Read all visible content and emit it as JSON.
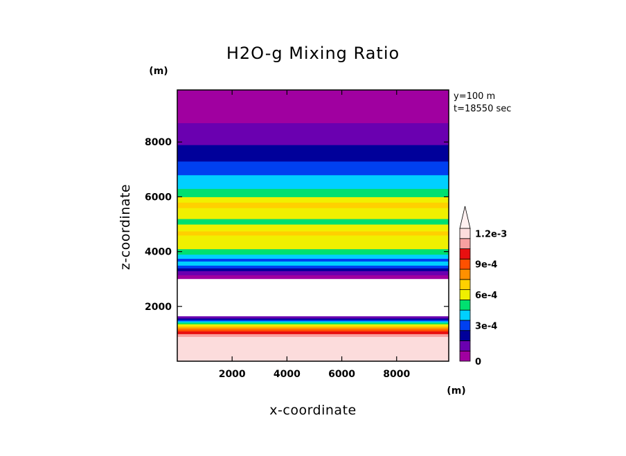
{
  "chart_data": {
    "type": "heatmap",
    "title": "H2O-g Mixing Ratio",
    "xlabel": "x-coordinate",
    "ylabel": "z-coordinate",
    "x_unit": "(m)",
    "y_unit": "(m)",
    "xlim": [
      0,
      9900
    ],
    "ylim": [
      0,
      9900
    ],
    "xticks": [
      "2000",
      "4000",
      "6000",
      "8000"
    ],
    "xtick_values": [
      2000,
      4000,
      6000,
      8000
    ],
    "yticks": [
      "2000",
      "4000",
      "6000",
      "8000"
    ],
    "ytick_values": [
      2000,
      4000,
      6000,
      8000
    ],
    "info_lines": [
      "y=100 m",
      "t=18550 sec"
    ],
    "colorbar": {
      "levels": [
        0,
        0.0001,
        0.0002,
        0.0003,
        0.0004,
        0.0005,
        0.0006,
        0.0007,
        0.0008,
        0.0009,
        0.001,
        0.0011,
        0.0012
      ],
      "colors": [
        "#a000a0",
        "#6a00b0",
        "#00009a",
        "#0040f0",
        "#00d0ff",
        "#00e070",
        "#f0f000",
        "#ffd000",
        "#ff9000",
        "#ff5000",
        "#e81010",
        "#f8a0a0",
        "#fcdcdc"
      ],
      "labels": [
        "0",
        "3e-4",
        "6e-4",
        "9e-4",
        "1.2e-3"
      ],
      "label_values": [
        0,
        0.0003,
        0.0006,
        0.0009,
        0.0012
      ],
      "extend": "max"
    },
    "layers": [
      {
        "z_bottom": 0,
        "z_top": 900,
        "level": 12
      },
      {
        "z_bottom": 900,
        "z_top": 1000,
        "level": 11
      },
      {
        "z_bottom": 1000,
        "z_top": 1100,
        "level": 10
      },
      {
        "z_bottom": 1100,
        "z_top": 1170,
        "level": 9
      },
      {
        "z_bottom": 1170,
        "z_top": 1240,
        "level": 8
      },
      {
        "z_bottom": 1240,
        "z_top": 1300,
        "level": 7
      },
      {
        "z_bottom": 1300,
        "z_top": 1360,
        "level": 6
      },
      {
        "z_bottom": 1360,
        "z_top": 1420,
        "level": 5
      },
      {
        "z_bottom": 1420,
        "z_top": 1470,
        "level": 4
      },
      {
        "z_bottom": 1470,
        "z_top": 1520,
        "level": 3
      },
      {
        "z_bottom": 1520,
        "z_top": 1570,
        "level": 2
      },
      {
        "z_bottom": 1570,
        "z_top": 1640,
        "level": 1
      },
      {
        "z_bottom": 3000,
        "z_top": 3150,
        "level": 0
      },
      {
        "z_bottom": 3150,
        "z_top": 3300,
        "level": 1
      },
      {
        "z_bottom": 3300,
        "z_top": 3400,
        "level": 2
      },
      {
        "z_bottom": 3400,
        "z_top": 3500,
        "level": 3
      },
      {
        "z_bottom": 3500,
        "z_top": 3650,
        "level": 4
      },
      {
        "z_bottom": 3650,
        "z_top": 3750,
        "level": 3
      },
      {
        "z_bottom": 3750,
        "z_top": 3900,
        "level": 4
      },
      {
        "z_bottom": 3900,
        "z_top": 4100,
        "level": 5
      },
      {
        "z_bottom": 4100,
        "z_top": 4600,
        "level": 6
      },
      {
        "z_bottom": 4600,
        "z_top": 4750,
        "level": 7
      },
      {
        "z_bottom": 4750,
        "z_top": 5000,
        "level": 6
      },
      {
        "z_bottom": 5000,
        "z_top": 5200,
        "level": 5
      },
      {
        "z_bottom": 5200,
        "z_top": 5600,
        "level": 6
      },
      {
        "z_bottom": 5600,
        "z_top": 5800,
        "level": 7
      },
      {
        "z_bottom": 5800,
        "z_top": 6000,
        "level": 6
      },
      {
        "z_bottom": 6000,
        "z_top": 6300,
        "level": 5
      },
      {
        "z_bottom": 6300,
        "z_top": 6800,
        "level": 4
      },
      {
        "z_bottom": 6800,
        "z_top": 7300,
        "level": 3
      },
      {
        "z_bottom": 7300,
        "z_top": 7900,
        "level": 2
      },
      {
        "z_bottom": 7900,
        "z_top": 8700,
        "level": 1
      },
      {
        "z_bottom": 8700,
        "z_top": 9900,
        "level": 0
      }
    ],
    "white_region": {
      "z_bottom": 1640,
      "z_top": 3000
    }
  }
}
